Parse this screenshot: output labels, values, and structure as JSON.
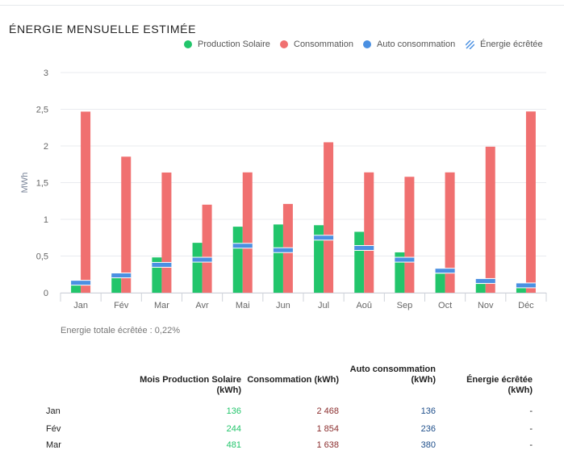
{
  "title": "ÉNERGIE MENSUELLE ESTIMÉE",
  "legend": {
    "production": "Production Solaire",
    "consumption": "Consommation",
    "self": "Auto consommation",
    "curtailed": "Énergie écrêtée"
  },
  "colors": {
    "production": "#22c56b",
    "consumption": "#f07070",
    "self": "#4a90e2",
    "curtailed": "#4a90e2"
  },
  "chart_data": {
    "type": "bar",
    "categories": [
      "Jan",
      "Fév",
      "Mar",
      "Avr",
      "Mai",
      "Jun",
      "Jul",
      "Aoû",
      "Sep",
      "Oct",
      "Nov",
      "Déc"
    ],
    "series": [
      {
        "name": "Production Solaire",
        "values": [
          0.136,
          0.244,
          0.481,
          0.68,
          0.9,
          0.93,
          0.92,
          0.83,
          0.55,
          0.26,
          0.12,
          0.07
        ]
      },
      {
        "name": "Consommation",
        "values": [
          2.468,
          1.854,
          1.638,
          1.2,
          1.64,
          1.21,
          2.05,
          1.64,
          1.58,
          1.64,
          1.99,
          2.47
        ]
      },
      {
        "name": "Auto consommation",
        "values": [
          0.136,
          0.236,
          0.38,
          0.45,
          0.64,
          0.58,
          0.75,
          0.61,
          0.45,
          0.3,
          0.16,
          0.1
        ]
      }
    ],
    "ylabel": "MWh",
    "yticks": [
      "0",
      "0,5",
      "1",
      "1,5",
      "2",
      "2,5",
      "3"
    ],
    "ylim": [
      0,
      3
    ],
    "grid": true,
    "legend_position": "top-right"
  },
  "note": "Energie totale écrêtée : 0,22%",
  "table": {
    "headers": {
      "production": "Mois Production Solaire (kWh)",
      "consumption": "Consommation (kWh)",
      "self_line1": "Auto consommation",
      "self_line2": "(kWh)",
      "curtailed": "Énergie écrêtée (kWh)"
    },
    "rows": [
      {
        "month": "Jan",
        "production": "136",
        "consumption": "2 468",
        "self": "136",
        "curtailed": "-"
      },
      {
        "month": "Fév",
        "production": "244",
        "consumption": "1 854",
        "self": "236",
        "curtailed": "-"
      },
      {
        "month": "Mar",
        "production": "481",
        "consumption": "1 638",
        "self": "380",
        "curtailed": "-"
      }
    ]
  }
}
